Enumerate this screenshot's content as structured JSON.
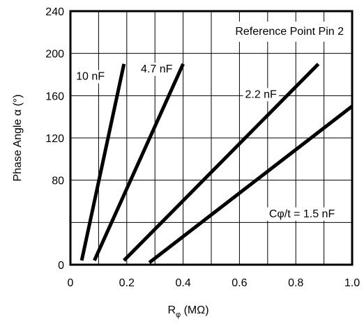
{
  "chart_data": {
    "type": "line",
    "title": "",
    "xlabel": {
      "main": "R",
      "sub": "φ",
      "unit": " (MΩ)"
    },
    "ylabel": "Phase Angle α (°)",
    "xlim": [
      0,
      1.0
    ],
    "ylim": [
      0,
      240
    ],
    "x_ticks": [
      0,
      0.2,
      0.4,
      0.6,
      0.8,
      1.0
    ],
    "x_tick_labels": [
      "0",
      "0.2",
      "0.4",
      "0.6",
      "0.8",
      "1.0"
    ],
    "y_ticks": [
      0,
      40,
      80,
      120,
      160,
      200,
      240
    ],
    "y_tick_labels": [
      "0",
      "",
      "80",
      "120",
      "160",
      "200",
      "240"
    ],
    "x_grid_minor_step": 0.1,
    "y_grid_step": 40,
    "grid": true,
    "annotation_box": "Reference Point Pin 2",
    "series": [
      {
        "name": "10 nF",
        "x": [
          0.04,
          0.19
        ],
        "y": [
          4,
          190
        ]
      },
      {
        "name": "4.7 nF",
        "x": [
          0.085,
          0.4
        ],
        "y": [
          4,
          190
        ]
      },
      {
        "name": "2.2 nF",
        "x": [
          0.19,
          0.88
        ],
        "y": [
          4,
          190
        ]
      },
      {
        "name": "Cφ/t = 1.5 nF",
        "x": [
          0.28,
          1.0
        ],
        "y": [
          2,
          150
        ]
      }
    ],
    "series_labels": [
      {
        "text": "10 nF",
        "x": 0.02,
        "y": 175
      },
      {
        "text": "4.7 nF",
        "x": 0.25,
        "y": 182
      },
      {
        "text": "2.2 nF",
        "x": 0.62,
        "y": 158
      },
      {
        "text": "Cφ/t = 1.5 nF",
        "x": 0.705,
        "y": 45
      }
    ],
    "colors": {
      "line": "#000000",
      "grid": "#000000",
      "background": "#ffffff"
    }
  }
}
